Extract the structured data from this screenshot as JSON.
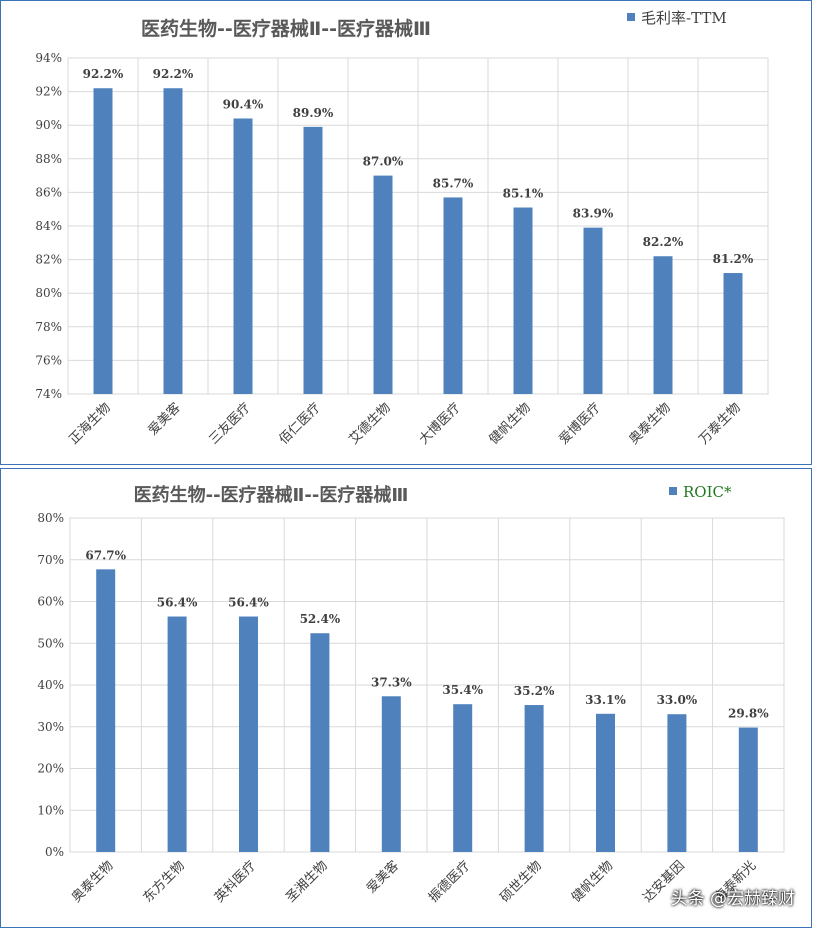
{
  "watermark": "头条 @宏赫臻财",
  "colors": {
    "bar": "#4f81bd",
    "border": "#3b73b9",
    "grid": "#d9d9d9",
    "legend_roic": "#1f7a1f",
    "legend_ttm": "#404040"
  },
  "chart_data": [
    {
      "type": "bar",
      "title": "医药生物--医疗器械Ⅱ--医疗器械Ⅲ",
      "legend": "毛利率-TTM",
      "legend_placement": "top-right",
      "categories": [
        "正海生物",
        "爱美客",
        "三友医疗",
        "佰仁医疗",
        "艾德生物",
        "大博医疗",
        "健帆生物",
        "爱博医疗",
        "奥泰生物",
        "万泰生物"
      ],
      "values": [
        92.2,
        92.2,
        90.4,
        89.9,
        87.0,
        85.7,
        85.1,
        83.9,
        82.2,
        81.2
      ],
      "data_labels": [
        "92.2%",
        "92.2%",
        "90.4%",
        "89.9%",
        "87.0%",
        "85.7%",
        "85.1%",
        "83.9%",
        "82.2%",
        "81.2%"
      ],
      "yticks": [
        "74%",
        "76%",
        "78%",
        "80%",
        "82%",
        "84%",
        "86%",
        "88%",
        "90%",
        "92%",
        "94%"
      ],
      "ylim": [
        74,
        94
      ],
      "grid": true
    },
    {
      "type": "bar",
      "title": "医药生物--医疗器械Ⅱ--医疗器械Ⅲ",
      "legend": "ROIC*",
      "legend_placement": "top-right",
      "categories": [
        "奥泰生物",
        "东方生物",
        "英科医疗",
        "圣湘生物",
        "爱美客",
        "振德医疗",
        "硕世生物",
        "健帆生物",
        "达安基因",
        "海泰新光"
      ],
      "values": [
        67.7,
        56.4,
        56.4,
        52.4,
        37.3,
        35.4,
        35.2,
        33.1,
        33.0,
        29.8
      ],
      "data_labels": [
        "67.7%",
        "56.4%",
        "56.4%",
        "52.4%",
        "37.3%",
        "35.4%",
        "35.2%",
        "33.1%",
        "33.0%",
        "29.8%"
      ],
      "yticks": [
        "0%",
        "10%",
        "20%",
        "30%",
        "40%",
        "50%",
        "60%",
        "70%",
        "80%"
      ],
      "ylim": [
        0,
        80
      ],
      "grid": true
    }
  ]
}
